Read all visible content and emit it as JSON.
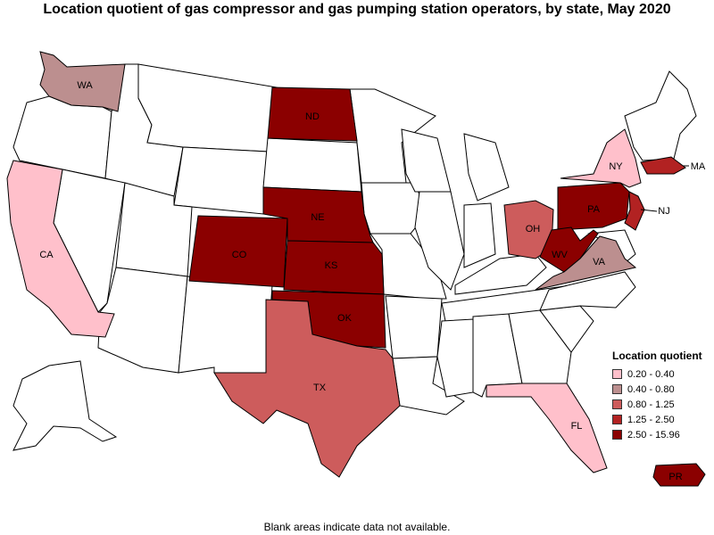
{
  "title": "Location quotient of gas compressor and gas pumping station operators, by state, May 2020",
  "footnote": "Blank areas indicate data not available.",
  "legend": {
    "title": "Location quotient",
    "items": [
      {
        "label": "0.20 - 0.40",
        "color": "#FFC0CB"
      },
      {
        "label": "0.40 - 0.80",
        "color": "#BC8F8F"
      },
      {
        "label": "0.80 - 1.25",
        "color": "#CD5C5C"
      },
      {
        "label": "1.25 - 2.50",
        "color": "#B22222"
      },
      {
        "label": "2.50 - 15.96",
        "color": "#8B0000"
      }
    ]
  },
  "states": {
    "WA": {
      "label": "WA",
      "category": 1
    },
    "CA": {
      "label": "CA",
      "category": 0
    },
    "ND": {
      "label": "ND",
      "category": 4
    },
    "NE": {
      "label": "NE",
      "category": 4
    },
    "CO": {
      "label": "CO",
      "category": 4
    },
    "KS": {
      "label": "KS",
      "category": 4
    },
    "OK": {
      "label": "OK",
      "category": 4
    },
    "TX": {
      "label": "TX",
      "category": 2
    },
    "OH": {
      "label": "OH",
      "category": 2
    },
    "PA": {
      "label": "PA",
      "category": 4
    },
    "WV": {
      "label": "WV",
      "category": 4
    },
    "VA": {
      "label": "VA",
      "category": 1
    },
    "NY": {
      "label": "NY",
      "category": 0
    },
    "NJ": {
      "label": "NJ",
      "category": 3
    },
    "MA": {
      "label": "MA",
      "category": 3
    },
    "FL": {
      "label": "FL",
      "category": 0
    },
    "PR": {
      "label": "PR",
      "category": 4
    }
  }
}
